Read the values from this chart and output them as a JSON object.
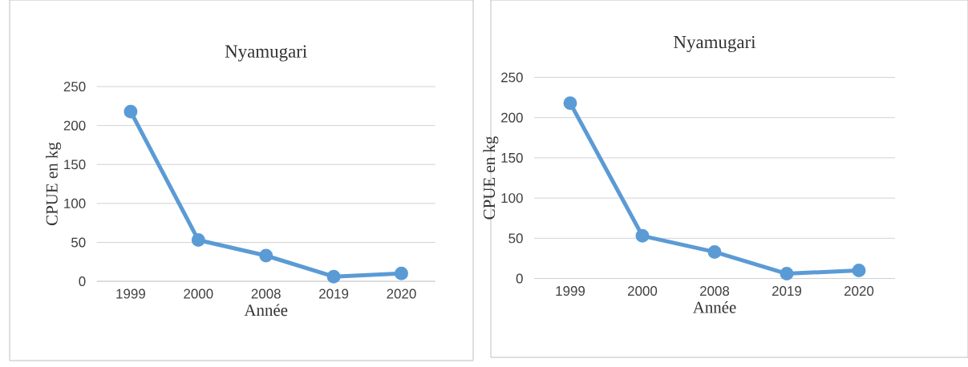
{
  "chart_data": [
    {
      "type": "line",
      "title": "Nyamugari",
      "xlabel": "Année",
      "ylabel": "CPUE en kg",
      "categories": [
        "1999",
        "2000",
        "2008",
        "2019",
        "2020"
      ],
      "values": [
        218,
        53,
        33,
        6,
        10
      ],
      "color": "#5b9bd5",
      "ylim": [
        0,
        250
      ],
      "yticks": [
        0,
        50,
        100,
        150,
        200,
        250
      ],
      "grid": "y",
      "marker": "circle"
    },
    {
      "type": "line",
      "title": "Nyamugari",
      "xlabel": "Année",
      "ylabel": "CPUE en kg",
      "categories": [
        "1999",
        "2000",
        "2008",
        "2019",
        "2020"
      ],
      "values": [
        218,
        53,
        33,
        6,
        10
      ],
      "color": "#5b9bd5",
      "ylim": [
        0,
        250
      ],
      "yticks": [
        0,
        50,
        100,
        150,
        200,
        250
      ],
      "grid": "y",
      "marker": "circle"
    }
  ]
}
